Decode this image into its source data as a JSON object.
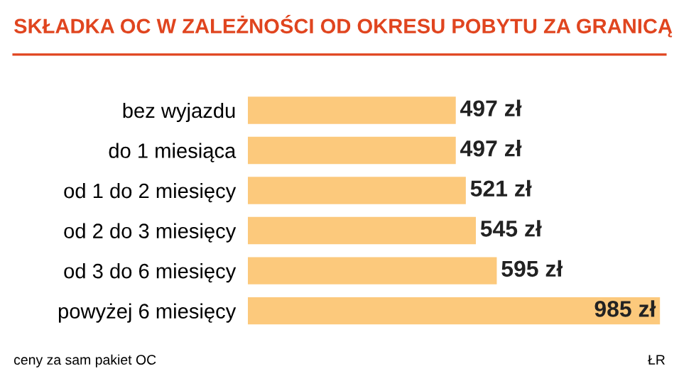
{
  "chart_data": {
    "type": "bar",
    "orientation": "horizontal",
    "title": "SKŁADKA OC W ZALEŻNOŚCI OD OKRESU POBYTU ZA GRANICĄ",
    "categories": [
      "bez wyjazdu",
      "do 1 miesiąca",
      "od 1 do 2 miesięcy",
      "od 2 do 3 miesięcy",
      "od 3 do 6 miesięcy",
      "powyżej 6 miesięcy"
    ],
    "values": [
      497,
      497,
      521,
      545,
      595,
      985
    ],
    "value_labels": [
      "497 zł",
      "497 zł",
      "521 zł",
      "545 zł",
      "595 zł",
      "985 zł"
    ],
    "color": "#fcc97c",
    "annotations": [
      "ceny za sam pakiet OC",
      "ŁR"
    ]
  }
}
